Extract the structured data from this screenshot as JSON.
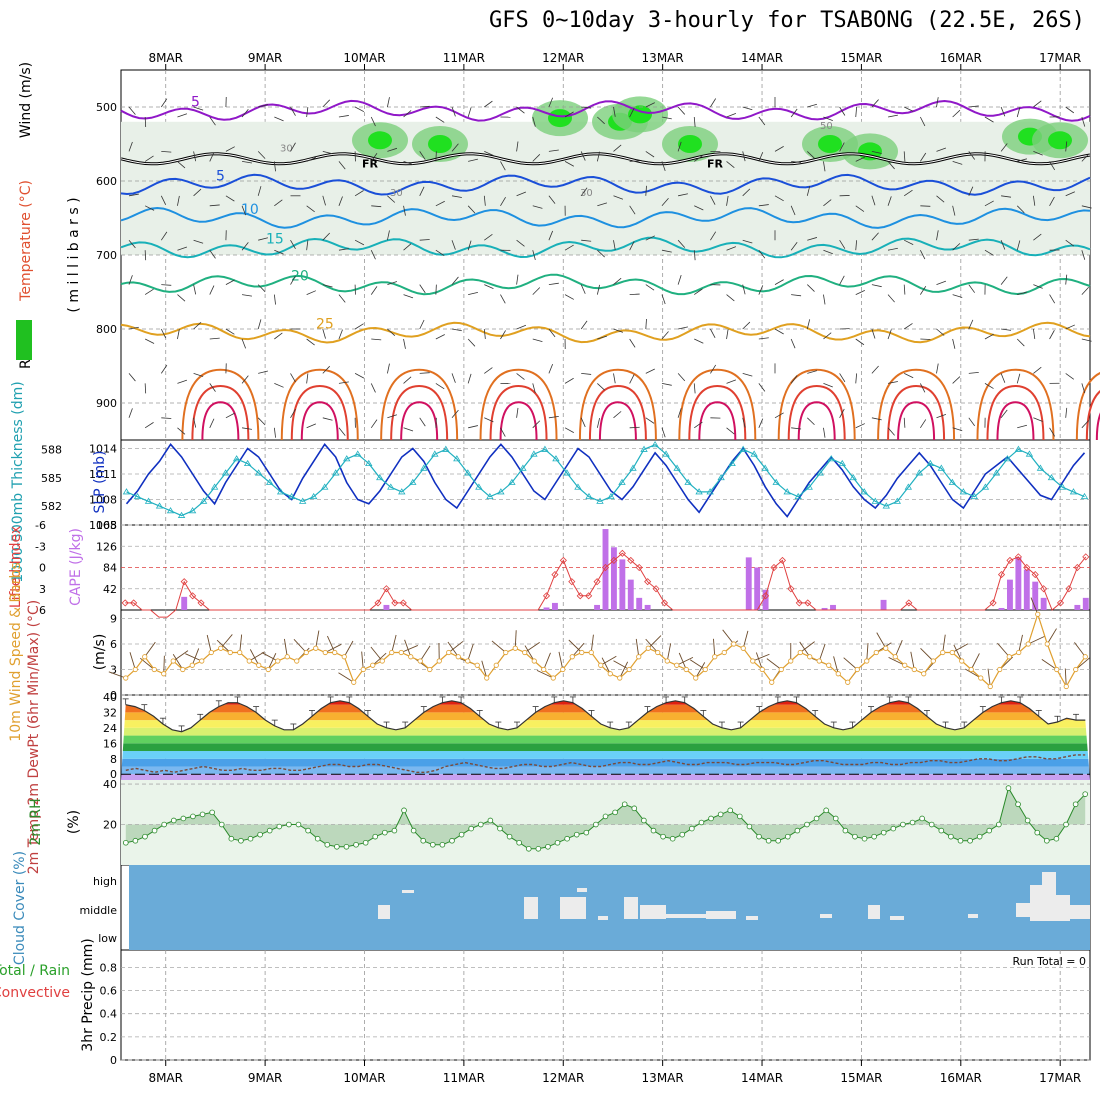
{
  "title": "GFS 0~10day 3-hourly for TSABONG (22.5E, 26S)",
  "chart_data": {
    "type": "meteogram",
    "dates": [
      "8MAR",
      "9MAR",
      "10MAR",
      "11MAR",
      "12MAR",
      "13MAR",
      "14MAR",
      "15MAR",
      "16MAR",
      "17MAR"
    ],
    "panels": {
      "upper": {
        "ylabel_parts": [
          "Wind (m/s)",
          "Temperature (°C)",
          "RH (%)",
          "( m i l l i b a r s )"
        ],
        "pressure_ticks": [
          500,
          600,
          700,
          800,
          900
        ],
        "ylim": [
          450,
          950
        ],
        "isotherms": [
          {
            "label": "5",
            "color": "#9018c8",
            "level": 505
          },
          {
            "label": "5",
            "color": "#1a4fd8",
            "level": 605
          },
          {
            "label": "10",
            "color": "#1e90e0",
            "level": 650
          },
          {
            "label": "15",
            "color": "#18b0b8",
            "level": 690
          },
          {
            "label": "20",
            "color": "#20b080",
            "level": 740
          },
          {
            "label": "25",
            "color": "#e0a020",
            "level": 805
          }
        ],
        "freezing_label": "FR",
        "rh_labels": [
          "30",
          "30",
          "50",
          "30"
        ]
      },
      "pressure": {
        "ylabel_left": "1000-500mb Thickness (dm)",
        "ylabel_right": "SLP (mb)",
        "thickness_ticks": [
          582,
          585,
          588
        ],
        "slp_ticks": [
          1005,
          1008,
          1011,
          1014
        ],
        "slp_values": [
          1007.5,
          1009,
          1011,
          1012.5,
          1014.5,
          1013,
          1011,
          1009,
          1007.5,
          1010,
          1012,
          1014,
          1013,
          1011,
          1009,
          1008,
          1010.5,
          1012.5,
          1014.5,
          1013,
          1010,
          1008,
          1007.5,
          1009,
          1011,
          1013,
          1014,
          1012.5,
          1010,
          1008,
          1007,
          1009,
          1011,
          1013,
          1014.5,
          1013,
          1011,
          1009,
          1008,
          1010,
          1012,
          1014,
          1013,
          1011,
          1009,
          1008,
          1009.5,
          1011.5,
          1013.5,
          1012,
          1010,
          1008,
          1006.5,
          1008.5,
          1010.5,
          1012.5,
          1014,
          1012,
          1009.5,
          1007.5,
          1006,
          1008,
          1010,
          1011.5,
          1013,
          1011.5,
          1009.5,
          1008,
          1007,
          1008.5,
          1010.5,
          1012,
          1013.5,
          1012,
          1010,
          1008,
          1007,
          1009,
          1011,
          1012,
          1013,
          1011.5,
          1010,
          1008.5,
          1008,
          1010,
          1012,
          1013.5
        ],
        "thickness_values": [
          583.5,
          583,
          582.5,
          582,
          581.5,
          581,
          581.5,
          582.5,
          584,
          585.5,
          587,
          586.5,
          585.5,
          584.5,
          583.5,
          583,
          582.5,
          583,
          584,
          585.5,
          587,
          587.5,
          586.5,
          585,
          584,
          583.5,
          584.5,
          586,
          587.5,
          588,
          587,
          585.5,
          584,
          583,
          583.5,
          584.5,
          586,
          587.5,
          588,
          587,
          585.5,
          584,
          583,
          582.5,
          583,
          584.5,
          586,
          588,
          588.5,
          587.5,
          586,
          584.5,
          583.5,
          583.5,
          585,
          586.5,
          588,
          587.5,
          586,
          584.5,
          583.5,
          583,
          584,
          585.5,
          587,
          586.5,
          585,
          583.5,
          582.5,
          582,
          582.5,
          584,
          585.5,
          586.5,
          586,
          584.5,
          583.5,
          583,
          584,
          585.5,
          587,
          588,
          587.5,
          586,
          585,
          584,
          583.5,
          583
        ]
      },
      "cape": {
        "ylabel_left": "Lifted Index",
        "ylabel_right": "CAPE (J/kg)",
        "li_ticks": [
          "-6",
          "-3",
          "0",
          "3",
          "6"
        ],
        "cape_ticks": [
          42,
          84,
          126,
          168
        ],
        "cape_values": [
          0,
          0,
          0,
          0,
          0,
          0,
          0,
          26,
          0,
          0,
          0,
          0,
          0,
          0,
          0,
          0,
          0,
          0,
          0,
          0,
          0,
          0,
          0,
          0,
          0,
          0,
          0,
          0,
          0,
          0,
          0,
          10,
          0,
          0,
          0,
          0,
          0,
          0,
          0,
          0,
          0,
          0,
          0,
          0,
          0,
          0,
          0,
          0,
          0,
          0,
          5,
          14,
          0,
          0,
          0,
          0,
          10,
          160,
          124,
          100,
          60,
          24,
          10,
          0,
          0,
          0,
          0,
          0,
          0,
          0,
          0,
          0,
          0,
          0,
          104,
          84,
          40,
          0,
          0,
          0,
          0,
          0,
          0,
          4,
          10,
          0,
          0,
          0,
          0,
          0,
          20,
          0,
          0,
          0,
          0,
          0,
          0,
          0,
          0,
          0,
          0,
          0,
          0,
          0,
          4,
          60,
          104,
          80,
          56,
          24,
          0,
          0,
          0,
          10,
          24
        ],
        "li_values": [
          5,
          5,
          6,
          6,
          7,
          7,
          6,
          2,
          4,
          5,
          6,
          6,
          6,
          6,
          6,
          6,
          6,
          6,
          6,
          6,
          6,
          6,
          6,
          6,
          6,
          6,
          6,
          6,
          6,
          6,
          5,
          3,
          5,
          5,
          6,
          6,
          6,
          6,
          6,
          6,
          6,
          6,
          6,
          6,
          6,
          6,
          6,
          6,
          6,
          6,
          4,
          1,
          -1,
          2,
          4,
          4,
          2,
          0,
          -1,
          -2,
          -1,
          0,
          2,
          3,
          5,
          6,
          6,
          6,
          6,
          6,
          6,
          6,
          6,
          6,
          6,
          6,
          4,
          0,
          -1,
          3,
          5,
          5,
          6,
          6,
          6,
          6,
          6,
          6,
          6,
          6,
          6,
          6,
          6,
          5,
          6,
          6,
          6,
          6,
          6,
          6,
          6,
          6,
          6,
          5,
          1,
          -1,
          -1.5,
          0,
          1,
          3,
          6,
          5,
          3,
          0,
          -1.5
        ]
      },
      "wind": {
        "ylabel_left": "10m Wind Speed & Barbs",
        "unit": "(m/s)",
        "ticks": [
          0,
          3,
          6,
          9
        ],
        "speeds": [
          2,
          3,
          4.5,
          3,
          2.5,
          4,
          3,
          3.5,
          4,
          5,
          5.5,
          5,
          5,
          4,
          3.5,
          3,
          4,
          4.5,
          4,
          5,
          5.5,
          5,
          5,
          4.5,
          1.5,
          3,
          3.5,
          4,
          5,
          5,
          4.5,
          4,
          3,
          4,
          5,
          4.5,
          4,
          3.5,
          2,
          3.5,
          5,
          5.5,
          5,
          4,
          3,
          2,
          3,
          4.5,
          5,
          5,
          3.5,
          2.5,
          2,
          3,
          4.5,
          5.5,
          5,
          4,
          3.5,
          3,
          2,
          3,
          4.5,
          5,
          6,
          5.5,
          4,
          3,
          1.5,
          3,
          4,
          5,
          4.5,
          4,
          3.5,
          2.5,
          1.5,
          3,
          4,
          5,
          5.5,
          4.5,
          3.5,
          3,
          2.5,
          4,
          5,
          5,
          4,
          3,
          2,
          1,
          3,
          4.5,
          5,
          6,
          9.5,
          6,
          3,
          1,
          3,
          4.5
        ]
      },
      "temp": {
        "ylabel": "2m Temp 2m DewPt (6hr Min/Max) (°C)",
        "ticks": [
          0,
          8,
          16,
          24,
          32,
          40
        ],
        "temp_values": [
          36,
          35,
          33,
          30,
          26,
          23,
          22,
          24,
          28,
          32,
          35,
          37,
          37,
          35,
          32,
          28,
          25,
          23,
          23,
          26,
          30,
          34,
          37,
          38,
          37,
          34,
          30,
          26,
          24,
          23,
          24,
          28,
          32,
          35,
          37,
          38,
          37,
          34,
          30,
          26,
          24,
          23,
          24,
          28,
          32,
          35,
          37,
          38,
          37,
          34,
          30,
          26,
          24,
          23,
          24,
          28,
          32,
          35,
          37,
          38,
          37,
          34,
          30,
          26,
          24,
          23,
          24,
          28,
          32,
          35,
          37,
          38,
          37,
          34,
          30,
          26,
          24,
          23,
          24,
          28,
          32,
          35,
          37,
          38,
          37,
          34,
          30,
          26,
          24,
          23,
          24,
          28,
          32,
          35,
          37,
          38,
          37,
          34,
          30,
          26,
          27,
          29,
          28,
          28
        ],
        "dewpt_values": [
          2,
          3,
          2,
          1,
          2,
          1,
          2,
          3,
          4,
          3,
          2,
          2,
          3,
          2,
          2,
          3,
          3,
          2,
          2,
          3,
          4,
          5,
          5,
          4,
          4,
          5,
          5,
          4,
          3,
          2,
          1,
          1,
          2,
          4,
          5,
          6,
          5,
          4,
          3,
          3,
          4,
          5,
          5,
          4,
          4,
          5,
          6,
          5,
          4,
          4,
          5,
          6,
          6,
          5,
          5,
          6,
          7,
          6,
          5,
          5,
          6,
          6,
          6,
          5,
          5,
          6,
          6,
          6,
          5,
          5,
          6,
          7,
          7,
          6,
          5,
          5,
          5,
          6,
          6,
          5,
          5,
          6,
          6,
          7,
          7,
          6,
          6,
          7,
          8,
          8,
          7,
          7,
          8,
          9,
          9,
          8,
          8,
          9,
          10,
          10
        ]
      },
      "rh": {
        "ylabel": "2m RH",
        "unit": "(%)",
        "ticks": [
          20,
          40
        ],
        "values": [
          11,
          12,
          14,
          17,
          20,
          22,
          23,
          24,
          25,
          26,
          20,
          13,
          12,
          13,
          15,
          17,
          19,
          20,
          20,
          17,
          13,
          10,
          9,
          9,
          10,
          11,
          14,
          16,
          17,
          27,
          17,
          12,
          10,
          10,
          12,
          15,
          18,
          20,
          22,
          18,
          14,
          11,
          8,
          8,
          9,
          11,
          13,
          15,
          16,
          20,
          24,
          26,
          30,
          28,
          22,
          17,
          14,
          13,
          15,
          18,
          21,
          23,
          25,
          27,
          24,
          19,
          14,
          12,
          12,
          14,
          17,
          20,
          23,
          27,
          23,
          17,
          14,
          13,
          14,
          16,
          18,
          20,
          21,
          23,
          20,
          17,
          14,
          12,
          12,
          14,
          17,
          20,
          38,
          30,
          22,
          16,
          12,
          13,
          20,
          30,
          35
        ]
      },
      "cloud": {
        "ylabel": "Cloud Cover (%)",
        "levels": [
          "high",
          "middle",
          "low"
        ]
      },
      "precip": {
        "ylabel_parts": [
          "Total / Rain",
          "Convective",
          "3hr Precip (mm)"
        ],
        "ticks": [
          0,
          0.2,
          0.4,
          0.6,
          0.8
        ],
        "run_total_label": "Run Total = 0",
        "values": []
      }
    }
  }
}
